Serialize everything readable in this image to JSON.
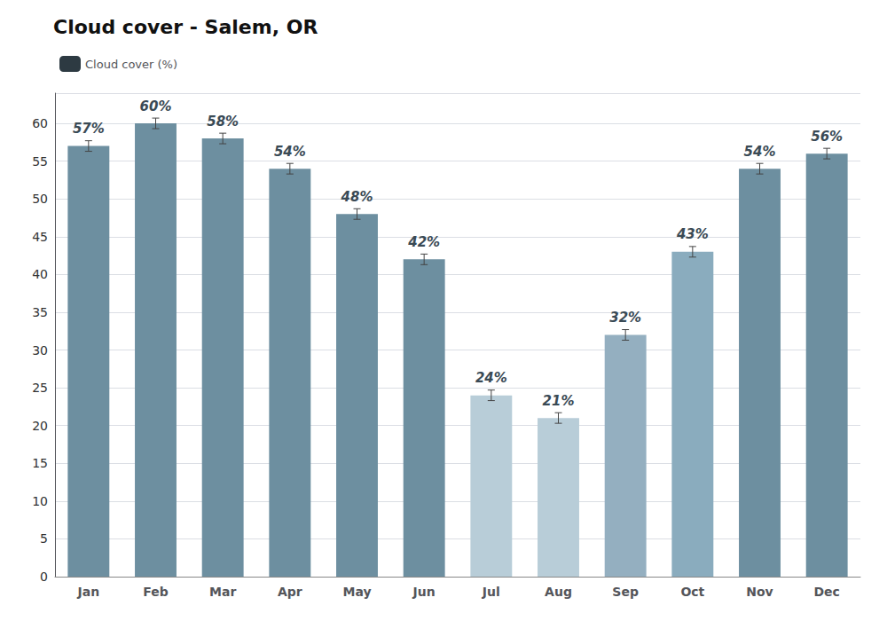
{
  "chart_data": {
    "type": "bar",
    "title": "Cloud cover - Salem, OR",
    "categories": [
      "Jan",
      "Feb",
      "Mar",
      "Apr",
      "May",
      "Jun",
      "Jul",
      "Aug",
      "Sep",
      "Oct",
      "Nov",
      "Dec"
    ],
    "series": [
      {
        "name": "Cloud cover (%)",
        "color": "#2d3a42",
        "colors": [
          "#6d8fa0",
          "#6d8fa0",
          "#6d8fa0",
          "#6d8fa0",
          "#6d8fa0",
          "#6d8fa0",
          "#b8cdd8",
          "#b8cdd8",
          "#94afc0",
          "#8aacbe",
          "#6d8fa0",
          "#6d8fa0"
        ],
        "values": [
          57,
          60,
          58,
          54,
          48,
          42,
          24,
          21,
          32,
          43,
          54,
          56
        ],
        "value_labels": [
          "57%",
          "60%",
          "58%",
          "54%",
          "48%",
          "42%",
          "24%",
          "21%",
          "32%",
          "43%",
          "54%",
          "56%"
        ],
        "errors": [
          0.7,
          0.7,
          0.7,
          0.7,
          0.7,
          0.7,
          0.7,
          0.7,
          0.7,
          0.7,
          0.7,
          0.7
        ]
      }
    ],
    "ylim": [
      0,
      64
    ],
    "yticks": [
      0,
      5,
      10,
      15,
      20,
      25,
      30,
      35,
      40,
      45,
      50,
      55,
      60
    ],
    "grid": true,
    "legend": "upper left",
    "data_labels": true
  }
}
